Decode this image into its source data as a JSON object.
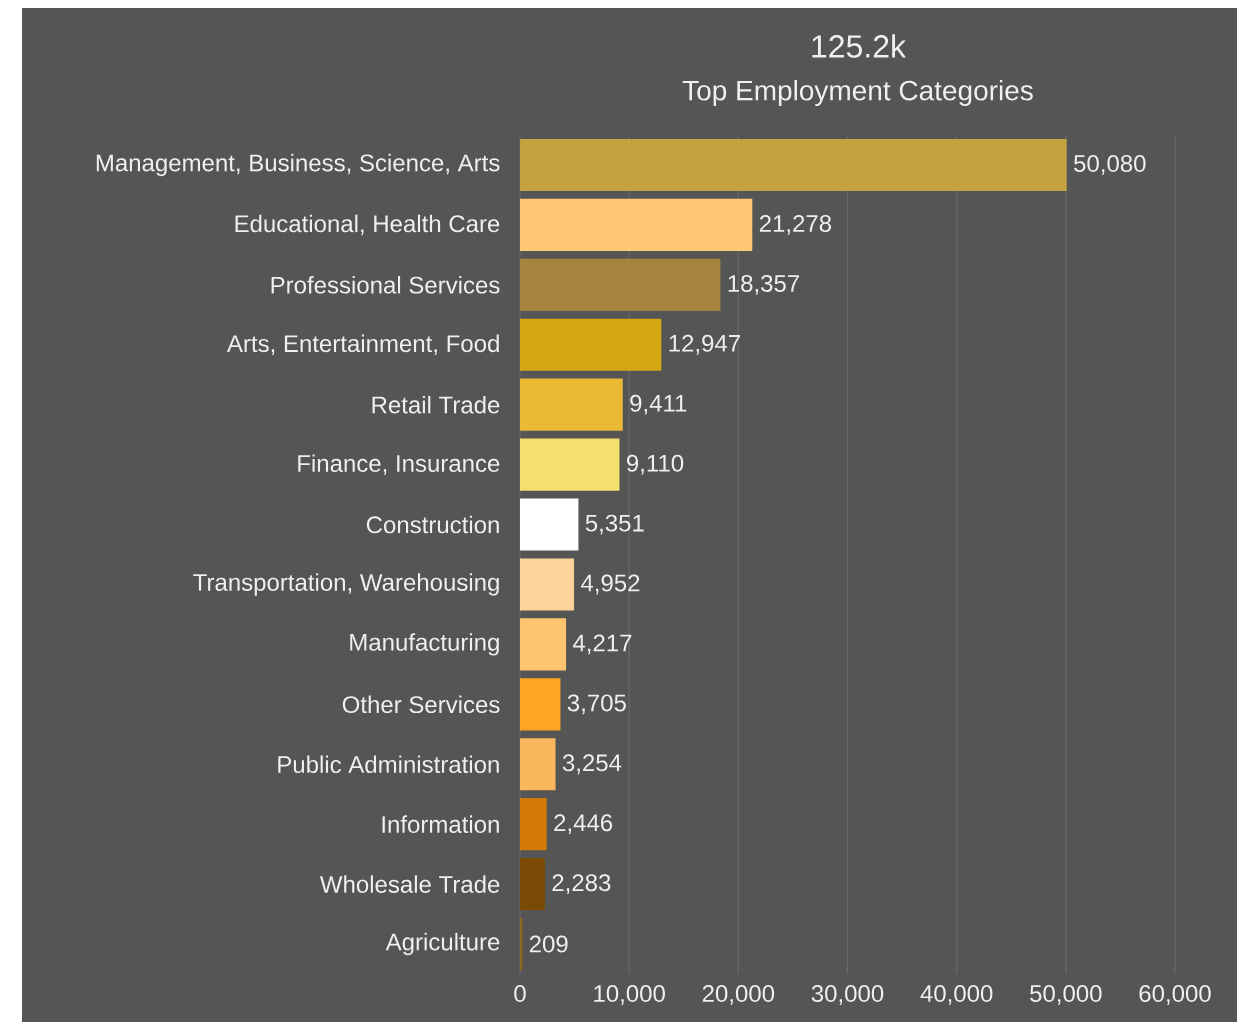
{
  "chart_data": {
    "type": "bar",
    "orientation": "horizontal",
    "title": "125.2k",
    "subtitle": "Top Employment Categories",
    "categories": [
      "Management, Business, Science, Arts",
      "Educational, Health Care",
      "Professional Services",
      "Arts, Entertainment, Food",
      "Retail Trade",
      "Finance, Insurance",
      "Construction",
      "Transportation, Warehousing",
      "Manufacturing",
      "Other Services",
      "Public Administration",
      "Information",
      "Wholesale Trade",
      "Agriculture"
    ],
    "values": [
      50080,
      21278,
      18357,
      12947,
      9411,
      9110,
      5351,
      4952,
      4217,
      3705,
      3254,
      2446,
      2283,
      209
    ],
    "value_labels": [
      "50,080",
      "21,278",
      "18,357",
      "12,947",
      "9,411",
      "9,110",
      "5,351",
      "4,952",
      "4,217",
      "3,705",
      "3,254",
      "2,446",
      "2,283",
      "209"
    ],
    "colors": [
      "#c4a23f",
      "#ffc875",
      "#a6843f",
      "#d4a812",
      "#ecb934",
      "#f5e06e",
      "#ffffff",
      "#fed49a",
      "#fec56e",
      "#fda626",
      "#fbb75b",
      "#d27a05",
      "#7b4a05",
      "#8a6a20"
    ],
    "xlim": [
      0,
      60000
    ],
    "xticks": [
      0,
      {
        "value": 10000,
        "label": "10,000"
      },
      {
        "value": 20000,
        "label": "20,000"
      },
      {
        "value": 30000,
        "label": "30,000"
      },
      {
        "value": 40000,
        "label": "40,000"
      },
      {
        "value": 50000,
        "label": "50,000"
      },
      {
        "value": 60000,
        "label": "60,000"
      }
    ],
    "grid": "x"
  }
}
